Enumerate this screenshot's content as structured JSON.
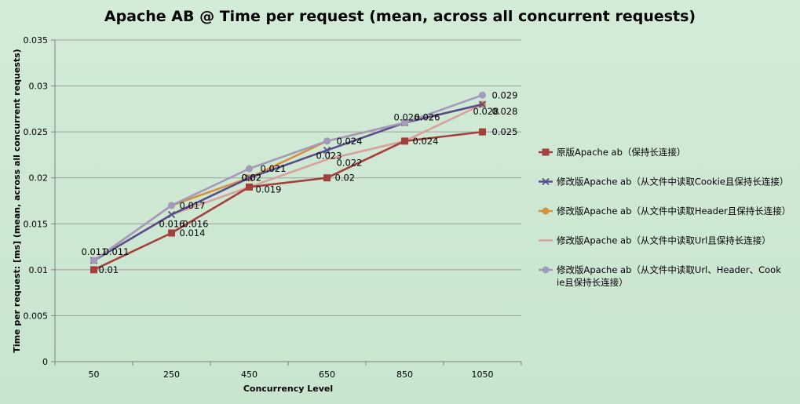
{
  "chart_data": {
    "type": "line",
    "title": "Apache AB @ Time per request (mean, across all concurrent requests)",
    "xlabel": "Concurrency Level",
    "ylabel": "Time per request:  [ms] (mean, across all concurrent requests)",
    "categories": [
      "50",
      "250",
      "450",
      "650",
      "850",
      "1050"
    ],
    "ylim": [
      0,
      0.035
    ],
    "yticks": [
      "0",
      "0.005",
      "0.01",
      "0.015",
      "0.02",
      "0.025",
      "0.03",
      "0.035"
    ],
    "grid": true,
    "legend_position": "right",
    "series": [
      {
        "name": "原版Apache ab（保持长连接）",
        "values": [
          0.01,
          0.014,
          0.019,
          0.02,
          0.024,
          0.025
        ],
        "labels": [
          "0.01",
          "0.014",
          "0.019",
          "0.02",
          "0.024",
          "0.025"
        ],
        "color": "#a33f3c",
        "marker": "square"
      },
      {
        "name": "修改版Apache ab（从文件中读取Cookie且保持长连接）",
        "values": [
          0.011,
          0.016,
          0.02,
          0.023,
          0.026,
          0.028
        ],
        "labels": [
          "0.011",
          "0.016",
          "0.02",
          "0.023",
          "0.026",
          "0.028"
        ],
        "color": "#5a4d8c",
        "marker": "x"
      },
      {
        "name": "修改版Apache ab（从文件中读取Header且保持长连接）",
        "values": [
          0.011,
          0.017,
          0.02,
          0.024,
          0.026,
          0.028
        ],
        "labels": [
          "",
          "",
          "0.02",
          "",
          "",
          ""
        ],
        "color": "#d8903c",
        "marker": "circle"
      },
      {
        "name": "修改版Apache ab（从文件中读取Url且保持长连接）",
        "values": [
          0.011,
          0.016,
          0.019,
          0.022,
          0.024,
          0.028
        ],
        "labels": [
          "",
          "0.016",
          "",
          "0.022",
          "",
          "0.028"
        ],
        "color": "#d9a09e",
        "marker": "none"
      },
      {
        "name": "修改版Apache ab（从文件中读取Url、Header、Cookie且保持长连接）",
        "values": [
          0.011,
          0.017,
          0.021,
          0.024,
          0.026,
          0.029
        ],
        "labels": [
          "0.011",
          "0.017",
          "0.021",
          "0.024",
          "0.026",
          "0.029"
        ],
        "color": "#a29ab8",
        "marker": "circle"
      }
    ]
  }
}
